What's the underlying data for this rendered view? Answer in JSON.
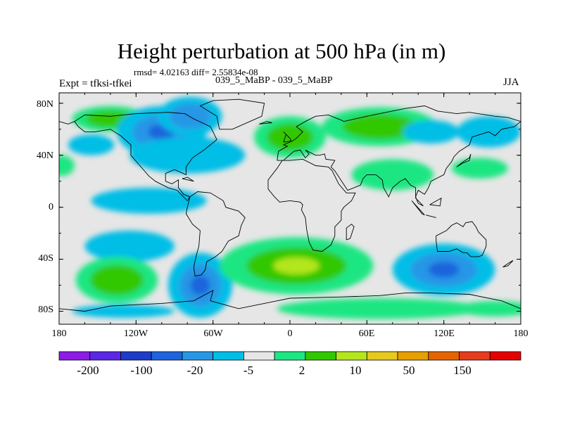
{
  "title": "Height perturbation at 500 hPa (in m)",
  "stats_line": "rmsd= 4.02163 diff= 2.55834e-08",
  "case_line": "039_5_MaBP - 039_5_MaBP",
  "expt_line": "Expt = tfksi-tfkei",
  "season": "JJA",
  "lat_labels": [
    "80N",
    "40N",
    "0",
    "40S",
    "80S"
  ],
  "lon_labels": [
    "180",
    "120W",
    "60W",
    "0",
    "60E",
    "120E",
    "180"
  ],
  "colorbar": {
    "colors": [
      "#8c1ce6",
      "#5a28e6",
      "#1e3cc8",
      "#1e64dc",
      "#2896e6",
      "#00bee6",
      "#e6e6e6",
      "#1ee682",
      "#32c800",
      "#b4e61e",
      "#e6c81e",
      "#e6a000",
      "#e66400",
      "#e63c1e",
      "#e60000"
    ],
    "labels": [
      "-200",
      "-100",
      "-20",
      "-5",
      "2",
      "10",
      "50",
      "150"
    ]
  },
  "field_anomalies": [
    {
      "lon": -140,
      "lat": 68,
      "rx": 30,
      "ry": 10,
      "v": 8
    },
    {
      "lon": -100,
      "lat": 58,
      "rx": 35,
      "ry": 20,
      "v": -12
    },
    {
      "lon": -78,
      "lat": 70,
      "rx": 25,
      "ry": 15,
      "v": -8
    },
    {
      "lon": -80,
      "lat": 40,
      "rx": 45,
      "ry": 14,
      "v": -6
    },
    {
      "lon": 0,
      "lat": 54,
      "rx": 28,
      "ry": 16,
      "v": 10
    },
    {
      "lon": 70,
      "lat": 62,
      "rx": 45,
      "ry": 15,
      "v": 8
    },
    {
      "lon": 110,
      "lat": 58,
      "rx": 22,
      "ry": 9,
      "v": -5
    },
    {
      "lon": 155,
      "lat": 58,
      "rx": 25,
      "ry": 12,
      "v": -6
    },
    {
      "lon": 80,
      "lat": 25,
      "rx": 32,
      "ry": 12,
      "v": 6
    },
    {
      "lon": 148,
      "lat": 30,
      "rx": 22,
      "ry": 8,
      "v": 5
    },
    {
      "lon": -178,
      "lat": 32,
      "rx": 10,
      "ry": 8,
      "v": 5
    },
    {
      "lon": -155,
      "lat": 48,
      "rx": 18,
      "ry": 8,
      "v": -4
    },
    {
      "lon": -110,
      "lat": 5,
      "rx": 45,
      "ry": 10,
      "v": -5
    },
    {
      "lon": -125,
      "lat": -30,
      "rx": 35,
      "ry": 12,
      "v": -7
    },
    {
      "lon": -135,
      "lat": -56,
      "rx": 32,
      "ry": 18,
      "v": 10
    },
    {
      "lon": -70,
      "lat": -60,
      "rx": 25,
      "ry": 25,
      "v": -12
    },
    {
      "lon": 5,
      "lat": -45,
      "rx": 60,
      "ry": 22,
      "v": 12
    },
    {
      "lon": 120,
      "lat": -48,
      "rx": 40,
      "ry": 20,
      "v": -12
    },
    {
      "lon": 70,
      "lat": -78,
      "rx": 80,
      "ry": 8,
      "v": 5
    },
    {
      "lon": 160,
      "lat": -78,
      "rx": 30,
      "ry": 6,
      "v": 4
    },
    {
      "lon": -130,
      "lat": -80,
      "rx": 40,
      "ry": 5,
      "v": -4
    }
  ],
  "coastlines": [
    [
      [
        -168,
        66
      ],
      [
        -160,
        71
      ],
      [
        -140,
        70
      ],
      [
        -120,
        72
      ],
      [
        -95,
        73
      ],
      [
        -82,
        72
      ],
      [
        -75,
        68
      ],
      [
        -62,
        62
      ],
      [
        -57,
        52
      ],
      [
        -67,
        44
      ],
      [
        -76,
        38
      ],
      [
        -81,
        31
      ],
      [
        -81,
        25
      ],
      [
        -90,
        29
      ],
      [
        -97,
        26
      ],
      [
        -97,
        20
      ],
      [
        -92,
        18
      ],
      [
        -87,
        21
      ],
      [
        -87,
        15
      ],
      [
        -83,
        10
      ],
      [
        -78,
        8
      ],
      [
        -80,
        5
      ],
      [
        -88,
        13
      ],
      [
        -95,
        15
      ],
      [
        -105,
        20
      ],
      [
        -110,
        24
      ],
      [
        -117,
        32
      ],
      [
        -124,
        40
      ],
      [
        -124,
        48
      ],
      [
        -132,
        55
      ],
      [
        -140,
        60
      ],
      [
        -152,
        58
      ],
      [
        -160,
        58
      ],
      [
        -165,
        62
      ],
      [
        -168,
        66
      ]
    ],
    [
      [
        -78,
        8
      ],
      [
        -72,
        12
      ],
      [
        -62,
        11
      ],
      [
        -52,
        5
      ],
      [
        -50,
        0
      ],
      [
        -40,
        -3
      ],
      [
        -35,
        -8
      ],
      [
        -38,
        -14
      ],
      [
        -40,
        -22
      ],
      [
        -48,
        -26
      ],
      [
        -53,
        -34
      ],
      [
        -58,
        -38
      ],
      [
        -65,
        -42
      ],
      [
        -66,
        -48
      ],
      [
        -69,
        -52
      ],
      [
        -74,
        -53
      ],
      [
        -75,
        -46
      ],
      [
        -73,
        -37
      ],
      [
        -71,
        -30
      ],
      [
        -70,
        -18
      ],
      [
        -76,
        -13
      ],
      [
        -81,
        -5
      ],
      [
        -80,
        0
      ],
      [
        -78,
        8
      ]
    ],
    [
      [
        -55,
        60
      ],
      [
        -45,
        60
      ],
      [
        -22,
        70
      ],
      [
        -20,
        80
      ],
      [
        -40,
        83
      ],
      [
        -60,
        82
      ],
      [
        -70,
        78
      ],
      [
        -57,
        70
      ],
      [
        -55,
        60
      ]
    ],
    [
      [
        -10,
        36
      ],
      [
        -9,
        43
      ],
      [
        -2,
        47
      ],
      [
        -5,
        48
      ],
      [
        2,
        51
      ],
      [
        5,
        53
      ],
      [
        8,
        56
      ],
      [
        10,
        58
      ],
      [
        5,
        62
      ],
      [
        12,
        66
      ],
      [
        20,
        70
      ],
      [
        30,
        71
      ],
      [
        40,
        67
      ],
      [
        42,
        66
      ],
      [
        60,
        70
      ],
      [
        75,
        73
      ],
      [
        90,
        76
      ],
      [
        105,
        78
      ],
      [
        115,
        74
      ],
      [
        130,
        72
      ],
      [
        140,
        73
      ],
      [
        160,
        70
      ],
      [
        170,
        69
      ],
      [
        180,
        66
      ]
    ],
    [
      [
        -180,
        66
      ],
      [
        -173,
        64
      ],
      [
        -168,
        66
      ]
    ],
    [
      [
        180,
        66
      ],
      [
        175,
        62
      ],
      [
        165,
        60
      ],
      [
        160,
        55
      ],
      [
        155,
        58
      ],
      [
        142,
        54
      ],
      [
        140,
        48
      ],
      [
        132,
        43
      ],
      [
        128,
        39
      ],
      [
        126,
        35
      ],
      [
        122,
        30
      ],
      [
        120,
        25
      ],
      [
        110,
        20
      ],
      [
        108,
        15
      ],
      [
        105,
        10
      ],
      [
        100,
        13
      ],
      [
        98,
        8
      ],
      [
        100,
        3
      ],
      [
        104,
        1
      ],
      [
        98,
        7
      ],
      [
        98,
        15
      ],
      [
        94,
        17
      ],
      [
        90,
        22
      ],
      [
        86,
        20
      ],
      [
        80,
        15
      ],
      [
        77,
        8
      ],
      [
        73,
        15
      ],
      [
        72,
        21
      ],
      [
        67,
        25
      ],
      [
        60,
        25
      ],
      [
        57,
        22
      ],
      [
        55,
        17
      ],
      [
        45,
        13
      ],
      [
        43,
        16
      ],
      [
        35,
        28
      ],
      [
        32,
        31
      ],
      [
        35,
        36
      ],
      [
        28,
        37
      ],
      [
        27,
        41
      ],
      [
        23,
        40
      ],
      [
        20,
        40
      ],
      [
        12,
        44
      ],
      [
        15,
        41
      ],
      [
        12,
        38
      ],
      [
        8,
        44
      ],
      [
        3,
        43
      ],
      [
        -5,
        36
      ],
      [
        -10,
        36
      ]
    ],
    [
      [
        -6,
        36
      ],
      [
        -10,
        30
      ],
      [
        -17,
        21
      ],
      [
        -17,
        14
      ],
      [
        -12,
        8
      ],
      [
        -8,
        4
      ],
      [
        0,
        5
      ],
      [
        8,
        4
      ],
      [
        10,
        2
      ],
      [
        9,
        -2
      ],
      [
        12,
        -8
      ],
      [
        13,
        -17
      ],
      [
        15,
        -27
      ],
      [
        18,
        -33
      ],
      [
        25,
        -34
      ],
      [
        32,
        -29
      ],
      [
        35,
        -22
      ],
      [
        35,
        -15
      ],
      [
        40,
        -10
      ],
      [
        40,
        -3
      ],
      [
        42,
        0
      ],
      [
        48,
        5
      ],
      [
        51,
        11
      ],
      [
        44,
        11
      ],
      [
        38,
        18
      ],
      [
        33,
        28
      ],
      [
        30,
        31
      ],
      [
        20,
        32
      ],
      [
        10,
        37
      ],
      [
        0,
        36
      ],
      [
        -6,
        36
      ]
    ],
    [
      [
        114,
        -22
      ],
      [
        114,
        -26
      ],
      [
        115,
        -34
      ],
      [
        124,
        -34
      ],
      [
        130,
        -32
      ],
      [
        135,
        -35
      ],
      [
        138,
        -35
      ],
      [
        141,
        -38
      ],
      [
        147,
        -38
      ],
      [
        150,
        -37
      ],
      [
        153,
        -30
      ],
      [
        153,
        -25
      ],
      [
        147,
        -19
      ],
      [
        145,
        -15
      ],
      [
        142,
        -11
      ],
      [
        137,
        -12
      ],
      [
        135,
        -15
      ],
      [
        130,
        -12
      ],
      [
        126,
        -14
      ],
      [
        122,
        -18
      ],
      [
        114,
        -22
      ]
    ],
    [
      [
        -180,
        -78
      ],
      [
        -160,
        -80
      ],
      [
        -140,
        -76
      ],
      [
        -100,
        -74
      ],
      [
        -75,
        -72
      ],
      [
        -60,
        -64
      ],
      [
        -62,
        -72
      ],
      [
        -40,
        -78
      ],
      [
        -20,
        -74
      ],
      [
        0,
        -70
      ],
      [
        40,
        -69
      ],
      [
        70,
        -68
      ],
      [
        90,
        -66
      ],
      [
        110,
        -66
      ],
      [
        140,
        -67
      ],
      [
        165,
        -72
      ],
      [
        180,
        -78
      ]
    ],
    [
      [
        -5,
        50
      ],
      [
        -3,
        56
      ],
      [
        -5,
        58
      ],
      [
        0,
        53
      ],
      [
        1,
        51
      ],
      [
        -5,
        50
      ]
    ],
    [
      [
        130,
        31
      ],
      [
        135,
        34
      ],
      [
        140,
        36
      ],
      [
        141,
        41
      ],
      [
        140,
        38
      ],
      [
        135,
        35
      ],
      [
        130,
        31
      ]
    ],
    [
      [
        166,
        -46
      ],
      [
        170,
        -45
      ],
      [
        174,
        -41
      ],
      [
        172,
        -42
      ],
      [
        166,
        -46
      ]
    ],
    [
      [
        44,
        -25
      ],
      [
        47,
        -24
      ],
      [
        50,
        -15
      ],
      [
        48,
        -13
      ],
      [
        44,
        -16
      ],
      [
        44,
        -25
      ]
    ],
    [
      [
        -24,
        64
      ],
      [
        -14,
        65
      ],
      [
        -18,
        66
      ],
      [
        -24,
        64
      ]
    ],
    [
      [
        95,
        5
      ],
      [
        105,
        -6
      ],
      [
        103,
        -5
      ],
      [
        95,
        5
      ]
    ],
    [
      [
        110,
        -7
      ],
      [
        114,
        -8
      ],
      [
        106,
        -6
      ],
      [
        110,
        -7
      ]
    ],
    [
      [
        109,
        2
      ],
      [
        118,
        7
      ],
      [
        117,
        1
      ],
      [
        109,
        2
      ]
    ],
    [
      [
        -84,
        22
      ],
      [
        -75,
        20
      ],
      [
        -80,
        23
      ],
      [
        -84,
        22
      ]
    ]
  ]
}
